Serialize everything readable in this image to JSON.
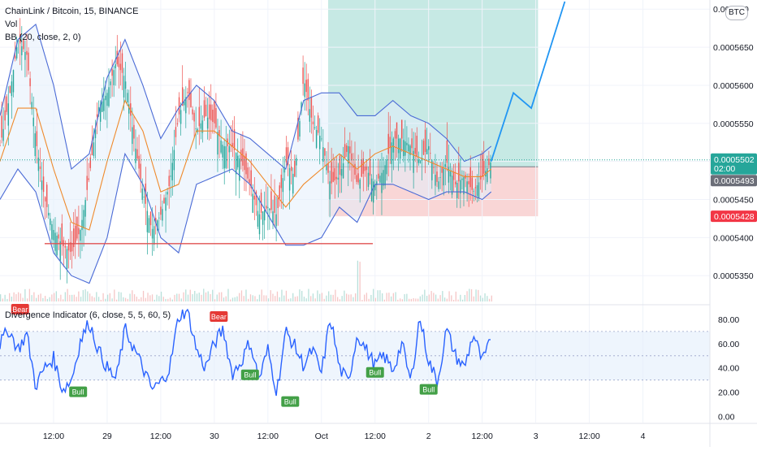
{
  "legend": {
    "symbol_line": "ChainLink / Bitcoin, 15, BINANCE",
    "volume": "Vol",
    "bb": "BB (20, close, 2, 0)",
    "indicator": "Divergence Indicator (6, close, 5, 5, 60, 5)"
  },
  "currency_badge": "BTC",
  "price_badges": {
    "last": "0.0005502",
    "countdown": "02:00",
    "entry": "0.0005493",
    "stop": "0.0005428"
  },
  "chart_data": [
    {
      "type": "line",
      "title": "",
      "description_series": "candlestick price with Bollinger Bands, position tool and projected path",
      "y_ticks": [
        0.000535,
        0.00054,
        0.000545,
        0.00055,
        0.000555,
        0.00056,
        0.000565,
        0.00057
      ],
      "y_tick_labels": [
        "0.0005350",
        "0.0005400",
        "0.0005450",
        "0.0005500",
        "0.0005550",
        "0.0005600",
        "0.0005650",
        "0.000570"
      ],
      "x_tick_labels": [
        "12:00",
        "29",
        "12:00",
        "30",
        "12:00",
        "Oct",
        "12:00",
        "2",
        "12:00",
        "3",
        "12:00",
        "4"
      ],
      "x_ticks_bars": [
        48,
        96,
        144,
        192,
        240,
        288,
        336,
        384,
        432,
        480,
        528,
        576
      ],
      "ylim": [
        0.0005315,
        0.0005712
      ],
      "xlim_bars": [
        0,
        636
      ],
      "series": [
        {
          "kind": "close",
          "color": "#26a69a",
          "x": [
            0,
            8,
            16,
            24,
            32,
            40,
            48,
            56,
            64,
            72,
            80,
            88,
            96,
            104,
            112,
            120,
            128,
            136,
            144,
            152,
            160,
            168,
            176,
            184,
            192,
            200,
            208,
            216,
            224,
            232,
            240,
            248,
            256,
            264,
            272,
            280,
            288,
            296,
            304,
            312,
            320,
            328,
            336,
            344,
            352,
            360,
            368,
            376,
            384,
            392,
            400,
            408,
            416,
            424,
            432,
            440
          ],
          "y": [
            0.000552,
            0.000558,
            0.000566,
            0.000564,
            0.000553,
            0.000545,
            0.000541,
            0.000539,
            0.000538,
            0.000541,
            0.000548,
            0.000557,
            0.000559,
            0.000563,
            0.000561,
            0.000553,
            0.000546,
            0.000541,
            0.000543,
            0.000547,
            0.000556,
            0.000559,
            0.000554,
            0.000556,
            0.000555,
            0.000552,
            0.000552,
            0.00055,
            0.000547,
            0.000543,
            0.000544,
            0.000543,
            0.00055,
            0.000548,
            0.000561,
            0.000555,
            0.000553,
            0.000547,
            0.000548,
            0.000552,
            0.000547,
            0.000549,
            0.000547,
            0.000549,
            0.000553,
            0.000553,
            0.000552,
            0.00055,
            0.000552,
            0.000547,
            0.00055,
            0.000547,
            0.000548,
            0.000546,
            0.000548,
            0.00055
          ]
        },
        {
          "kind": "bb_basis",
          "color": "#ef8a2c",
          "x": [
            0,
            16,
            32,
            48,
            64,
            80,
            96,
            112,
            128,
            144,
            160,
            176,
            192,
            208,
            224,
            240,
            256,
            272,
            288,
            304,
            320,
            336,
            352,
            368,
            384,
            400,
            416,
            432,
            440
          ],
          "y": [
            0.00055,
            0.000557,
            0.000557,
            0.000549,
            0.000542,
            0.000541,
            0.00055,
            0.000558,
            0.000554,
            0.000546,
            0.000547,
            0.000554,
            0.000554,
            0.000552,
            0.00055,
            0.000547,
            0.000544,
            0.000547,
            0.000549,
            0.000551,
            0.000549,
            0.000551,
            0.000552,
            0.000551,
            0.00055,
            0.000549,
            0.000548,
            0.000548,
            0.000549
          ]
        },
        {
          "kind": "bb_upper",
          "color": "#4b6bd6",
          "x": [
            0,
            16,
            32,
            48,
            64,
            80,
            96,
            112,
            128,
            144,
            160,
            176,
            192,
            208,
            224,
            240,
            256,
            272,
            288,
            304,
            320,
            336,
            352,
            368,
            384,
            400,
            416,
            432,
            440
          ],
          "y": [
            0.000556,
            0.000566,
            0.000568,
            0.00056,
            0.000549,
            0.000551,
            0.000561,
            0.000566,
            0.00056,
            0.000553,
            0.000557,
            0.00056,
            0.000558,
            0.000554,
            0.000553,
            0.000551,
            0.000549,
            0.000558,
            0.000559,
            0.000559,
            0.000556,
            0.000556,
            0.000558,
            0.000556,
            0.000555,
            0.000553,
            0.00055,
            0.000551,
            0.000552
          ]
        },
        {
          "kind": "bb_lower",
          "color": "#4b6bd6",
          "x": [
            0,
            16,
            32,
            48,
            64,
            80,
            96,
            112,
            128,
            144,
            160,
            176,
            192,
            208,
            224,
            240,
            256,
            272,
            288,
            304,
            320,
            336,
            352,
            368,
            384,
            400,
            416,
            432,
            440
          ],
          "y": [
            0.000545,
            0.000549,
            0.000546,
            0.000538,
            0.000535,
            0.000534,
            0.00054,
            0.000551,
            0.000547,
            0.00054,
            0.000538,
            0.000547,
            0.000548,
            0.000549,
            0.000547,
            0.000543,
            0.000539,
            0.000539,
            0.00054,
            0.000544,
            0.000542,
            0.000547,
            0.000547,
            0.000546,
            0.000545,
            0.000546,
            0.000546,
            0.000545,
            0.000546
          ]
        },
        {
          "kind": "projection",
          "color": "#2196f3",
          "x": [
            440,
            460,
            476,
            506
          ],
          "y": [
            0.00055,
            0.000559,
            0.000557,
            0.000571
          ]
        }
      ],
      "horizontal_lines": [
        {
          "name": "support",
          "y": 0.0005392,
          "x_from": 40,
          "x_to": 334,
          "color": "#e05252"
        },
        {
          "name": "last-price",
          "y": 0.0005502,
          "color": "#26a69a",
          "dotted": true
        }
      ],
      "position_tool": {
        "x_from": 294,
        "x_to": 482,
        "entry": 0.0005493,
        "stop": 0.0005428,
        "target": 0.0005712,
        "profit_color": "#c6e9e4",
        "loss_color": "#f9d6d6"
      }
    },
    {
      "type": "line",
      "title": "",
      "ylim": [
        -5,
        90
      ],
      "y_ticks": [
        0,
        20,
        40,
        60,
        80
      ],
      "y_tick_labels": [
        "0.00",
        "20.00",
        "40.00",
        "60.00",
        "80.00"
      ],
      "band": [
        30,
        70
      ],
      "series": [
        {
          "kind": "divergence_oscillator",
          "color": "#2962ff",
          "x": [
            0,
            8,
            16,
            24,
            32,
            40,
            48,
            56,
            64,
            72,
            80,
            88,
            96,
            104,
            112,
            120,
            128,
            136,
            144,
            152,
            160,
            168,
            176,
            184,
            192,
            200,
            208,
            216,
            224,
            232,
            240,
            248,
            256,
            264,
            272,
            280,
            288,
            296,
            304,
            312,
            320,
            328,
            336,
            344,
            352,
            360,
            368,
            376,
            384,
            392,
            400,
            408,
            416,
            424,
            432,
            440
          ],
          "y": [
            60,
            72,
            55,
            68,
            25,
            40,
            48,
            22,
            30,
            62,
            78,
            55,
            40,
            30,
            72,
            56,
            40,
            22,
            28,
            40,
            82,
            88,
            55,
            40,
            60,
            72,
            35,
            45,
            62,
            30,
            55,
            20,
            70,
            58,
            42,
            55,
            35,
            82,
            40,
            28,
            68,
            55,
            42,
            50,
            38,
            60,
            28,
            82,
            46,
            28,
            72,
            50,
            40,
            68,
            45,
            62
          ]
        }
      ],
      "annotations": [
        {
          "text": "Bear",
          "x": 18,
          "y": 88,
          "kind": "bear"
        },
        {
          "text": "Bear",
          "x": 196,
          "y": 82,
          "kind": "bear"
        },
        {
          "text": "Bull",
          "x": 70,
          "y": 20,
          "kind": "bull"
        },
        {
          "text": "Bull",
          "x": 224,
          "y": 34,
          "kind": "bull"
        },
        {
          "text": "Bull",
          "x": 260,
          "y": 12,
          "kind": "bull"
        },
        {
          "text": "Bull",
          "x": 336,
          "y": 36,
          "kind": "bull"
        },
        {
          "text": "Bull",
          "x": 384,
          "y": 22,
          "kind": "bull"
        }
      ]
    }
  ]
}
